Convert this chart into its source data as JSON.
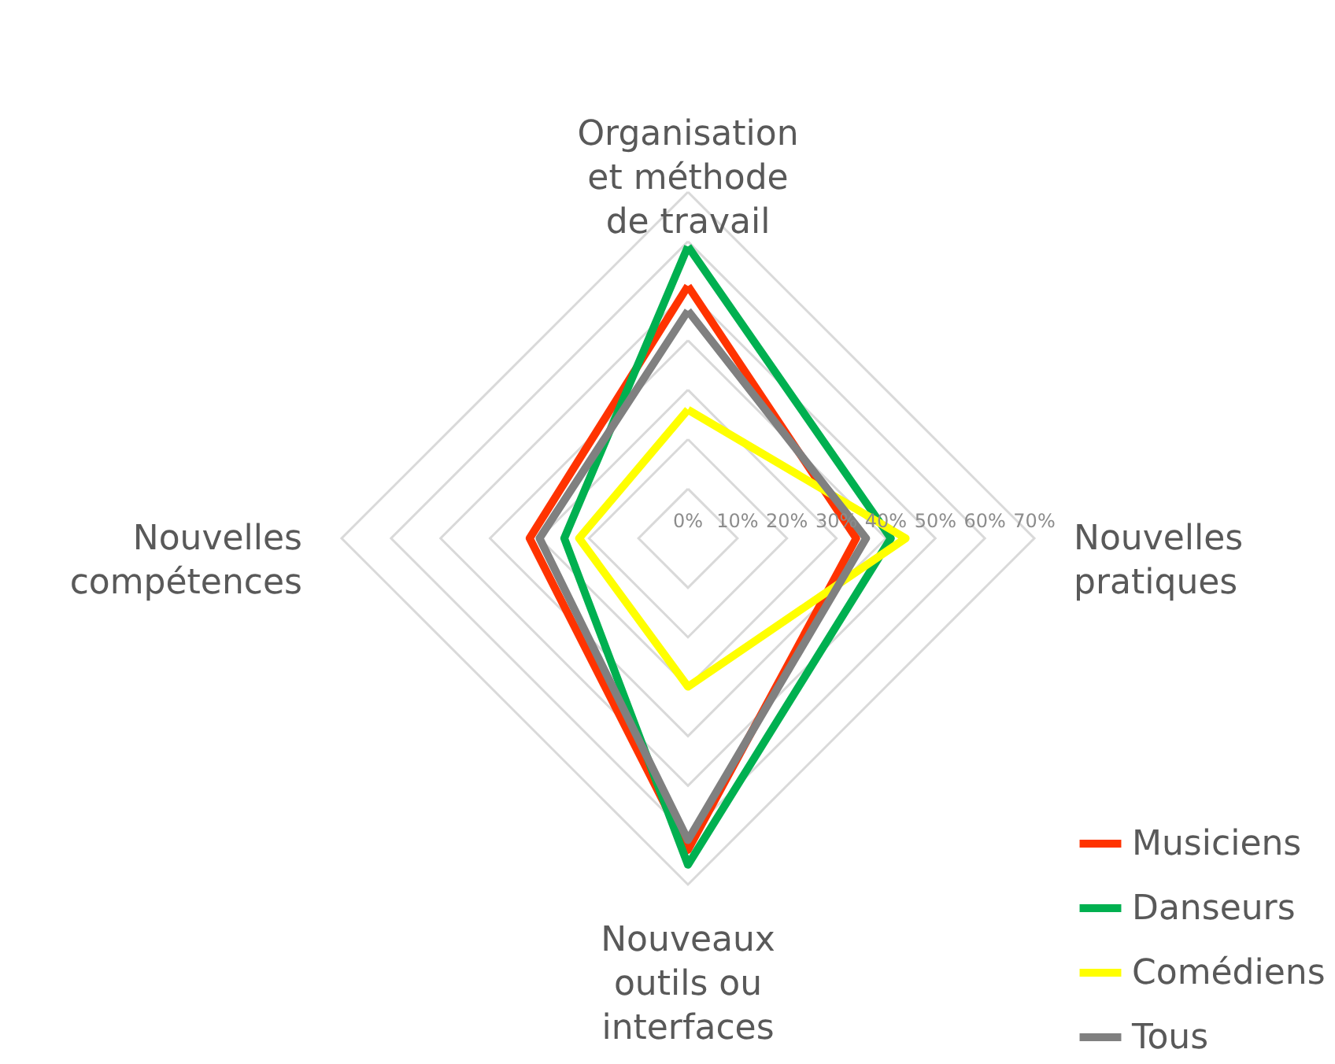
{
  "chart_data": {
    "type": "radar",
    "categories": [
      "Organisation et méthode de travail",
      "Nouvelles pratiques",
      "Nouveaux outils ou interfaces",
      "Nouvelles compétences"
    ],
    "series": [
      {
        "name": "Musiciens",
        "color": "#ff3300",
        "values": [
          51,
          34,
          63,
          32
        ]
      },
      {
        "name": "Danseurs",
        "color": "#00b050",
        "values": [
          59,
          41,
          66,
          25
        ]
      },
      {
        "name": "Comédiens",
        "color": "#ffff00",
        "values": [
          26,
          44,
          30,
          22
        ]
      },
      {
        "name": "Tous",
        "color": "#808080",
        "values": [
          46,
          36,
          61,
          30
        ]
      }
    ],
    "ylim": [
      0,
      70
    ],
    "yticks": [
      {
        "value": 0,
        "label": "0%"
      },
      {
        "value": 10,
        "label": "10%"
      },
      {
        "value": 20,
        "label": "20%"
      },
      {
        "value": 30,
        "label": "30%"
      },
      {
        "value": 40,
        "label": "40%"
      },
      {
        "value": 50,
        "label": "50%"
      },
      {
        "value": 60,
        "label": "60%"
      },
      {
        "value": 70,
        "label": "70%"
      }
    ],
    "grid": true,
    "legend": "bottom right"
  }
}
